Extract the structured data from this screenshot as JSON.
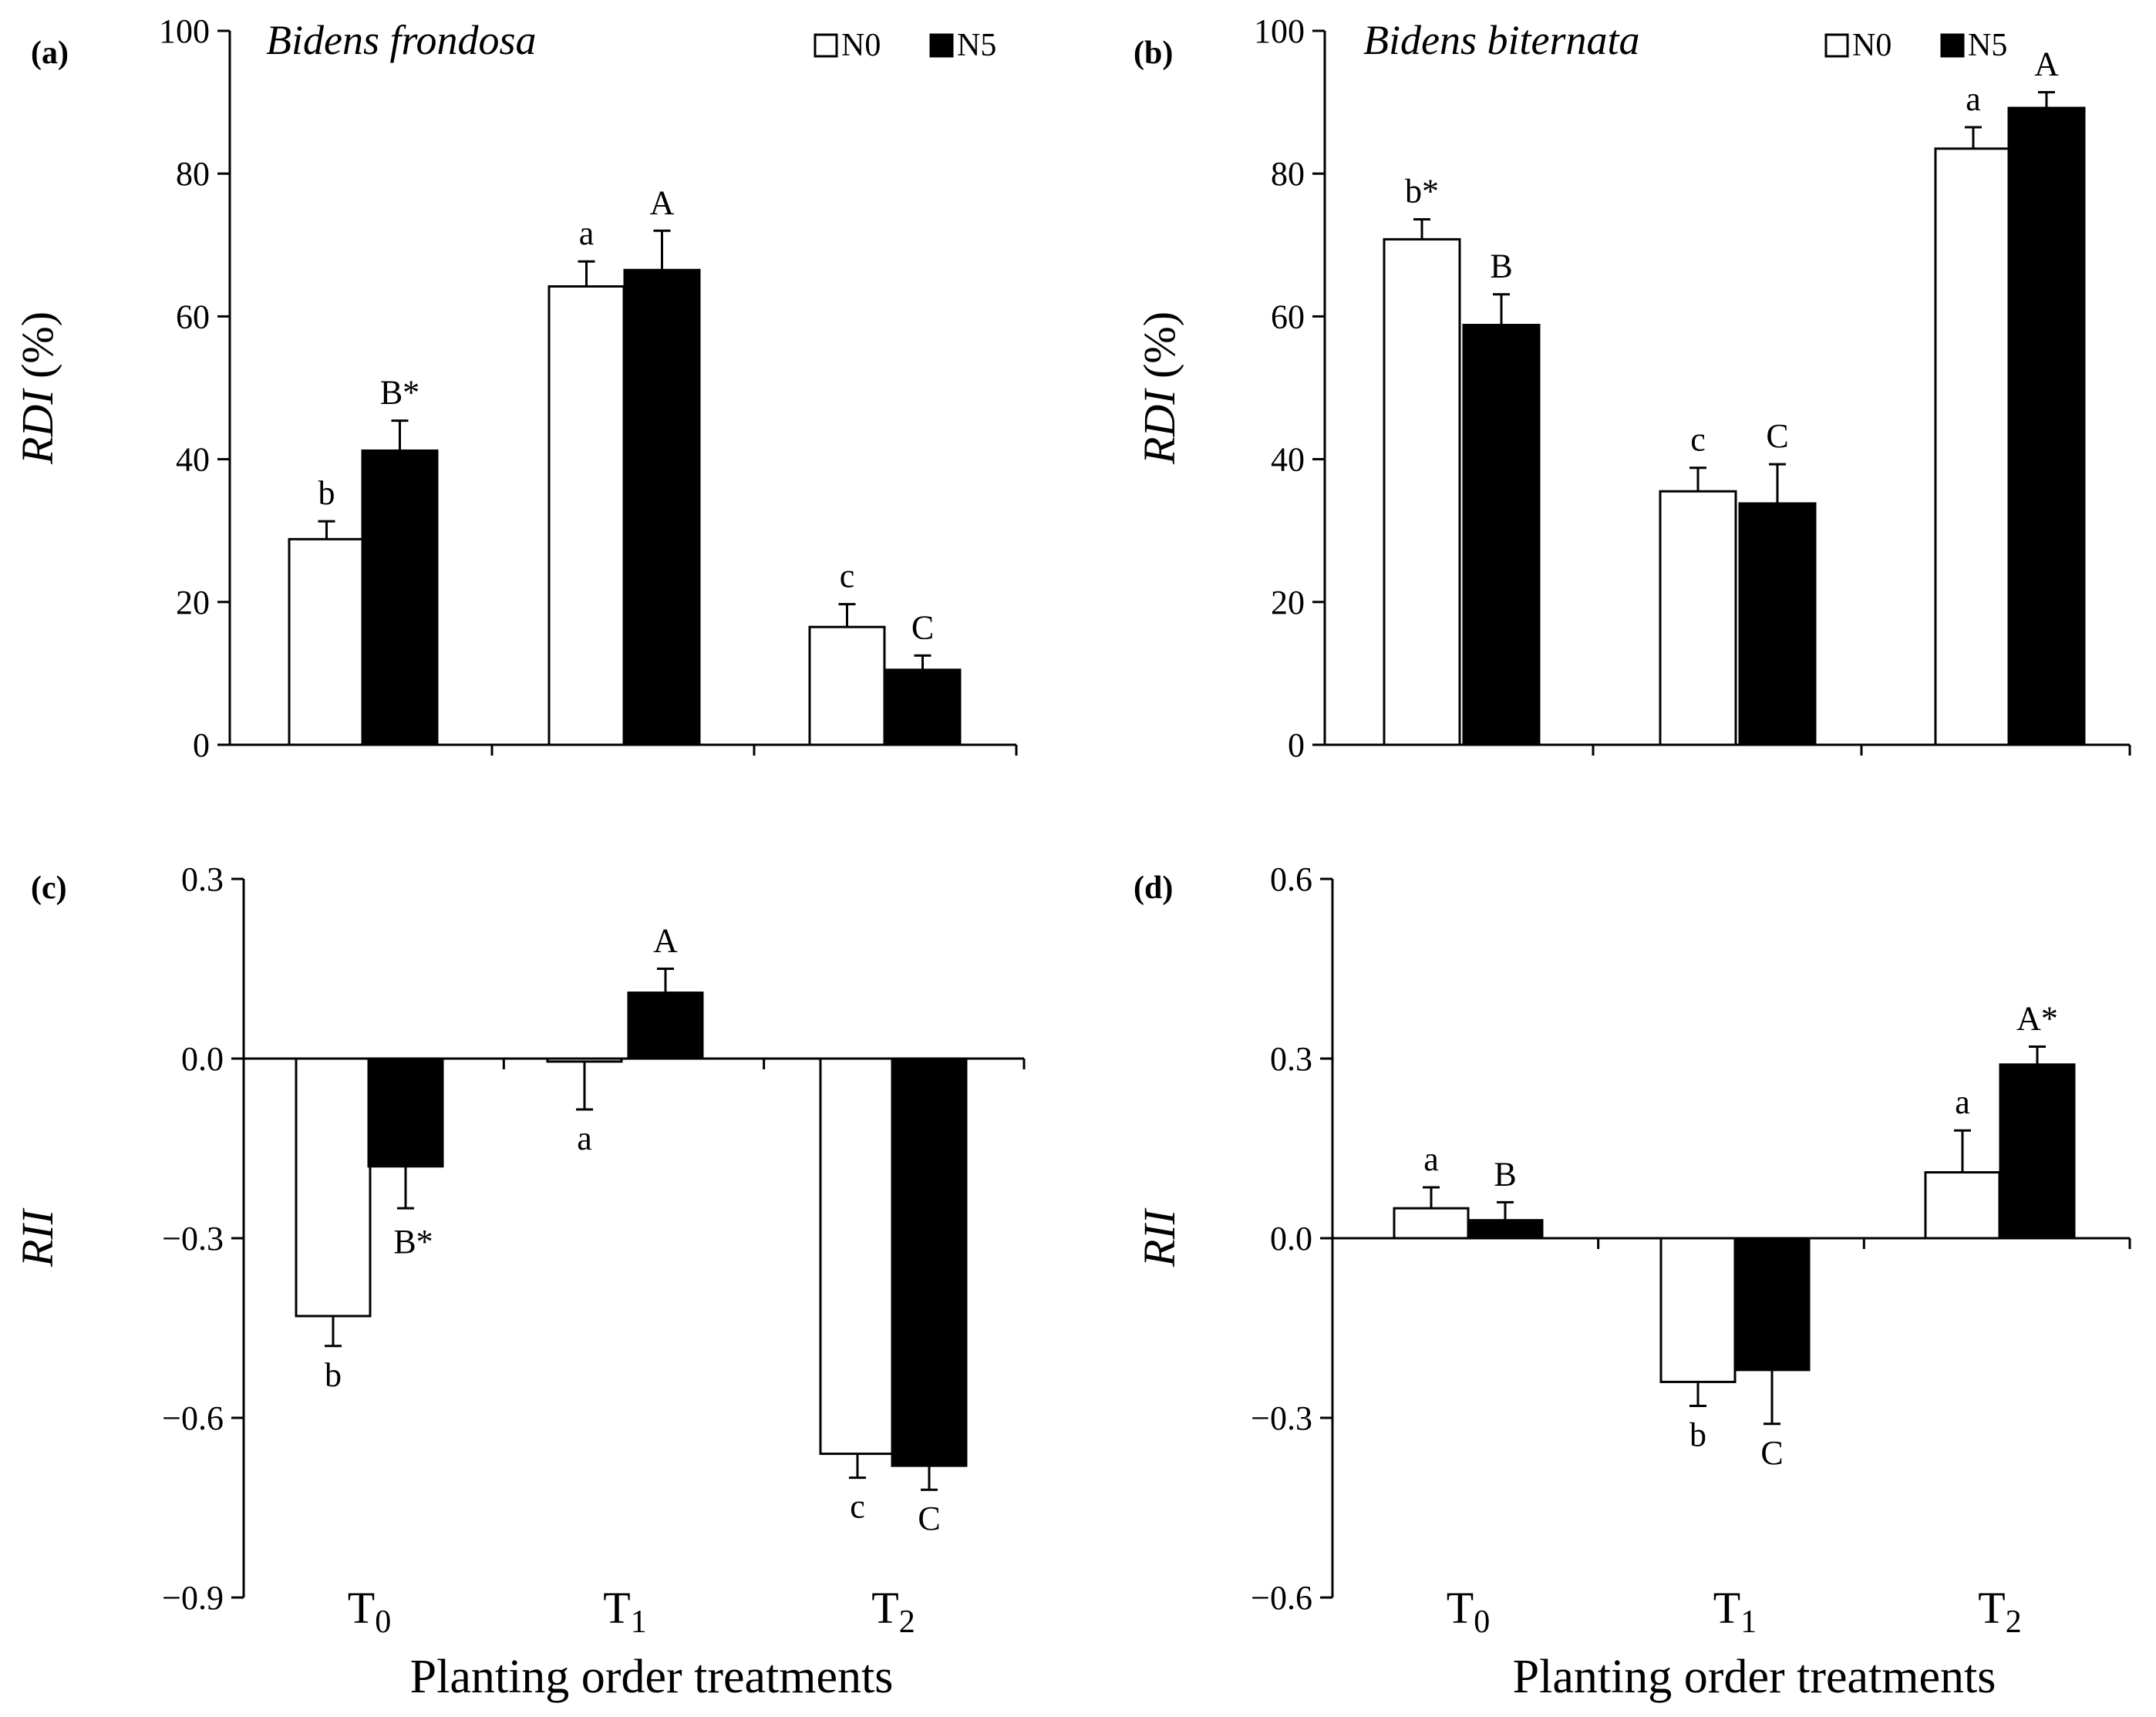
{
  "figure": {
    "x_axis_title": "Planting order treatments",
    "categories": [
      {
        "base": "T",
        "sub": "0"
      },
      {
        "base": "T",
        "sub": "1"
      },
      {
        "base": "T",
        "sub": "2"
      }
    ]
  },
  "legend": [
    {
      "label": "N0",
      "color": "#ffffff"
    },
    {
      "label": "N5",
      "color": "#000000"
    }
  ],
  "chart_data": [
    {
      "id": "a",
      "panel_label": "(a)",
      "species": "Bidens frondosa",
      "type": "bar",
      "ylabel_italic": "RDI",
      "ylabel_suffix": " (%)",
      "ylim": [
        0,
        100
      ],
      "yticks": [
        0,
        20,
        40,
        60,
        80,
        100
      ],
      "tick_decimals": 0,
      "categories": [
        "T0",
        "T1",
        "T2"
      ],
      "show_legend": true,
      "series": [
        {
          "name": "N0",
          "values": [
            28.8,
            64.2,
            16.5
          ],
          "errors": [
            2.5,
            3.5,
            3.2
          ],
          "labels": [
            "b",
            "a",
            "c"
          ]
        },
        {
          "name": "N5",
          "values": [
            41.2,
            66.5,
            10.5
          ],
          "errors": [
            4.2,
            5.5,
            2.0
          ],
          "labels": [
            "B*",
            "A",
            "C"
          ]
        }
      ]
    },
    {
      "id": "b",
      "panel_label": "(b)",
      "species": "Bidens biternata",
      "type": "bar",
      "ylabel_italic": "RDI",
      "ylabel_suffix": " (%)",
      "ylim": [
        0,
        100
      ],
      "yticks": [
        0,
        20,
        40,
        60,
        80,
        100
      ],
      "tick_decimals": 0,
      "categories": [
        "T0",
        "T1",
        "T2"
      ],
      "show_legend": true,
      "series": [
        {
          "name": "N0",
          "values": [
            70.8,
            35.5,
            83.5
          ],
          "errors": [
            2.8,
            3.3,
            3.0
          ],
          "labels": [
            "b*",
            "c",
            "a"
          ]
        },
        {
          "name": "N5",
          "values": [
            58.8,
            33.8,
            89.2
          ],
          "errors": [
            4.3,
            5.5,
            2.2
          ],
          "labels": [
            "B",
            "C",
            "A"
          ]
        }
      ]
    },
    {
      "id": "c",
      "panel_label": "(c)",
      "type": "bar",
      "ylabel_italic": "RII",
      "ylabel_suffix": "",
      "ylim": [
        -0.9,
        0.3
      ],
      "yticks": [
        -0.9,
        -0.6,
        -0.3,
        0.0,
        0.3
      ],
      "tick_decimals": 1,
      "categories": [
        "T0",
        "T1",
        "T2"
      ],
      "show_legend": false,
      "series": [
        {
          "name": "N0",
          "values": [
            -0.43,
            -0.005,
            -0.66
          ],
          "errors": [
            0.05,
            0.08,
            0.04
          ],
          "labels": [
            "b",
            "a",
            "c"
          ]
        },
        {
          "name": "N5",
          "values": [
            -0.18,
            0.11,
            -0.68
          ],
          "errors": [
            0.07,
            0.04,
            0.04
          ],
          "labels": [
            "B*",
            "A",
            "C"
          ]
        }
      ]
    },
    {
      "id": "d",
      "panel_label": "(d)",
      "type": "bar",
      "ylabel_italic": "RII",
      "ylabel_suffix": "",
      "ylim": [
        -0.6,
        0.6
      ],
      "yticks": [
        -0.6,
        -0.3,
        0.0,
        0.3,
        0.6
      ],
      "tick_decimals": 1,
      "categories": [
        "T0",
        "T1",
        "T2"
      ],
      "show_legend": false,
      "series": [
        {
          "name": "N0",
          "values": [
            0.05,
            -0.24,
            0.11
          ],
          "errors": [
            0.035,
            0.04,
            0.07
          ],
          "labels": [
            "a",
            "b",
            "a"
          ]
        },
        {
          "name": "N5",
          "values": [
            0.03,
            -0.22,
            0.29
          ],
          "errors": [
            0.03,
            0.09,
            0.03
          ],
          "labels": [
            "B",
            "C",
            "A*"
          ]
        }
      ]
    }
  ]
}
